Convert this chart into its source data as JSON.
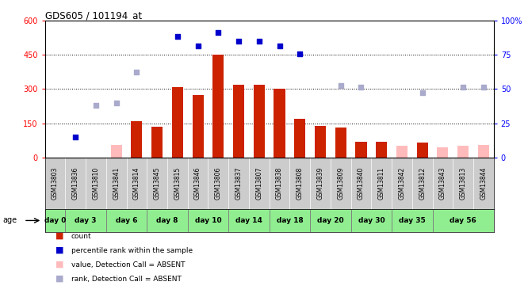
{
  "title": "GDS605 / 101194_at",
  "samples": [
    "GSM13803",
    "GSM13836",
    "GSM13810",
    "GSM13841",
    "GSM13814",
    "GSM13845",
    "GSM13815",
    "GSM13846",
    "GSM13806",
    "GSM13837",
    "GSM13807",
    "GSM13838",
    "GSM13808",
    "GSM13839",
    "GSM13809",
    "GSM13840",
    "GSM13811",
    "GSM13842",
    "GSM13812",
    "GSM13843",
    "GSM13813",
    "GSM13844"
  ],
  "day_spans": [
    {
      "label": "day 0",
      "start": 0,
      "end": 1
    },
    {
      "label": "day 3",
      "start": 1,
      "end": 3
    },
    {
      "label": "day 6",
      "start": 3,
      "end": 5
    },
    {
      "label": "day 8",
      "start": 5,
      "end": 7
    },
    {
      "label": "day 10",
      "start": 7,
      "end": 9
    },
    {
      "label": "day 14",
      "start": 9,
      "end": 11
    },
    {
      "label": "day 18",
      "start": 11,
      "end": 13
    },
    {
      "label": "day 20",
      "start": 13,
      "end": 15
    },
    {
      "label": "day 30",
      "start": 15,
      "end": 17
    },
    {
      "label": "day 35",
      "start": 17,
      "end": 19
    },
    {
      "label": "day 56",
      "start": 19,
      "end": 22
    }
  ],
  "bar_values": [
    null,
    null,
    null,
    null,
    160,
    135,
    310,
    275,
    450,
    320,
    320,
    300,
    170,
    140,
    130,
    70,
    70,
    null,
    65,
    null,
    null,
    null
  ],
  "absent_bar_values": [
    null,
    null,
    null,
    55,
    null,
    null,
    null,
    null,
    null,
    null,
    null,
    null,
    null,
    null,
    null,
    null,
    null,
    50,
    null,
    45,
    50,
    55
  ],
  "rank_values": [
    null,
    90,
    null,
    null,
    null,
    null,
    530,
    490,
    550,
    510,
    510,
    490,
    455,
    null,
    null,
    null,
    null,
    null,
    null,
    null,
    null,
    null
  ],
  "absent_rank_values": [
    null,
    null,
    230,
    240,
    375,
    null,
    null,
    null,
    null,
    null,
    null,
    null,
    null,
    null,
    315,
    310,
    null,
    null,
    285,
    null,
    310,
    310
  ],
  "left_yticks": [
    0,
    150,
    300,
    450,
    600
  ],
  "right_yticks": [
    0,
    25,
    50,
    75,
    100
  ],
  "bar_color": "#cc2200",
  "absent_bar_color": "#ffbbbb",
  "rank_color": "#0000cc",
  "absent_rank_color": "#aaaacc",
  "bg_sample_row": "#cccccc",
  "bg_day_green": "#90ee90",
  "legend_items": [
    {
      "color": "#cc2200",
      "label": "count"
    },
    {
      "color": "#0000cc",
      "label": "percentile rank within the sample"
    },
    {
      "color": "#ffbbbb",
      "label": "value, Detection Call = ABSENT"
    },
    {
      "color": "#aaaacc",
      "label": "rank, Detection Call = ABSENT"
    }
  ]
}
